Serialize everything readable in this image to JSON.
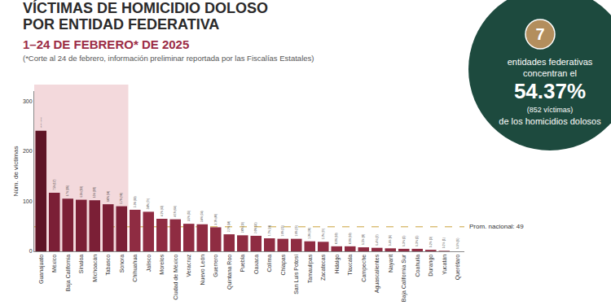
{
  "chart_data": {
    "type": "bar",
    "title": "VÍCTIMAS DE HOMICIDIO DOLOSO\nPOR ENTIDAD FEDERATIVA",
    "subtitle": "1–24 DE FEBRERO* DE 2025",
    "note": "(*Corte al 24 de febrero, información preliminar reportada por las Fiscalías Estatales)",
    "y_label": "Núm. de víctimas",
    "categories": [
      "Guanajuato",
      "México",
      "Baja California",
      "Sinaloa",
      "Michoacán",
      "Tabasco",
      "Sonora",
      "Chihuahua",
      "Jalisco",
      "Morelos",
      "Ciudad de México",
      "Veracruz",
      "Nuevo León",
      "Guerrero",
      "Quintana Roo",
      "Puebla",
      "Oaxaca",
      "Colima",
      "Chiapas",
      "San Luis Potosí",
      "Tamaulipas",
      "Zacatecas",
      "Hidalgo",
      "Tlaxcala",
      "Campeche",
      "Aguascalientes",
      "Nayarit",
      "Baja California Sur",
      "Coahuila",
      "Durango",
      "Yucatán",
      "Querétaro"
    ],
    "values": [
      241,
      117,
      105,
      103,
      102,
      94,
      90,
      83,
      79,
      65,
      64,
      55,
      54,
      48,
      34,
      32,
      31,
      26,
      25,
      25,
      20,
      19,
      10,
      10,
      8,
      7,
      6,
      5,
      5,
      3,
      1,
      0
    ],
    "value_labels": [
      "15.4% (241)",
      "7.5% (117)",
      "6.7% (105)",
      "6.6% (103)",
      "6.5% (102)",
      "6.0% (94)",
      "5.7% (90)",
      "5.3% (83)",
      "5.0% (79)",
      "4.1% (65)",
      "4.1% (64)",
      "3.5% (55)",
      "3.4% (54)",
      "3.1% (48)",
      "2.2% (34)",
      "2.0% (32)",
      "2.0% (31)",
      "1.7% (26)",
      "1.6% (25)",
      "1.6% (25)",
      "1.3% (20)",
      "1.2% (19)",
      "0.6% (10)",
      "0.6% (10)",
      "0.5% (8)",
      "0.4% (7)",
      "0.4% (6)",
      "0.3% (5)",
      "0.3% (5)",
      "0.2% (3)",
      "0.1% (1)",
      "0.0% (0)"
    ],
    "colors": [
      "#5e1526",
      "#7b1f36",
      "#7b1f36",
      "#7b1f36",
      "#7b1f36",
      "#7b1f36",
      "#7b1f36",
      "#8f2c42",
      "#8f2c42",
      "#8f2c42",
      "#8f2c42",
      "#8f2c42",
      "#8f2c42",
      "#8f2c42",
      "#8f2c42",
      "#8f2c42",
      "#8f2c42",
      "#8f2c42",
      "#8f2c42",
      "#8f2c42",
      "#8f2c42",
      "#8f2c42",
      "#8f2c42",
      "#8f2c42",
      "#8f2c42",
      "#8f2c42",
      "#8f2c42",
      "#8f2c42",
      "#8f2c42",
      "#8f2c42",
      "#8f2c42",
      "#8f2c42"
    ],
    "ylim": [
      0,
      320
    ],
    "yticks": [
      0,
      100,
      200,
      300
    ],
    "grid": false,
    "data_labels": true,
    "reference_line": {
      "value": 49,
      "label": "Prom. nacional: 49"
    }
  },
  "callout": {
    "number": 7,
    "line1": "entidades federativas",
    "line2": "concentran el",
    "percent": "54.37%",
    "detail": "(852 víctimas)",
    "line3": "de los homicidios dolosos"
  }
}
